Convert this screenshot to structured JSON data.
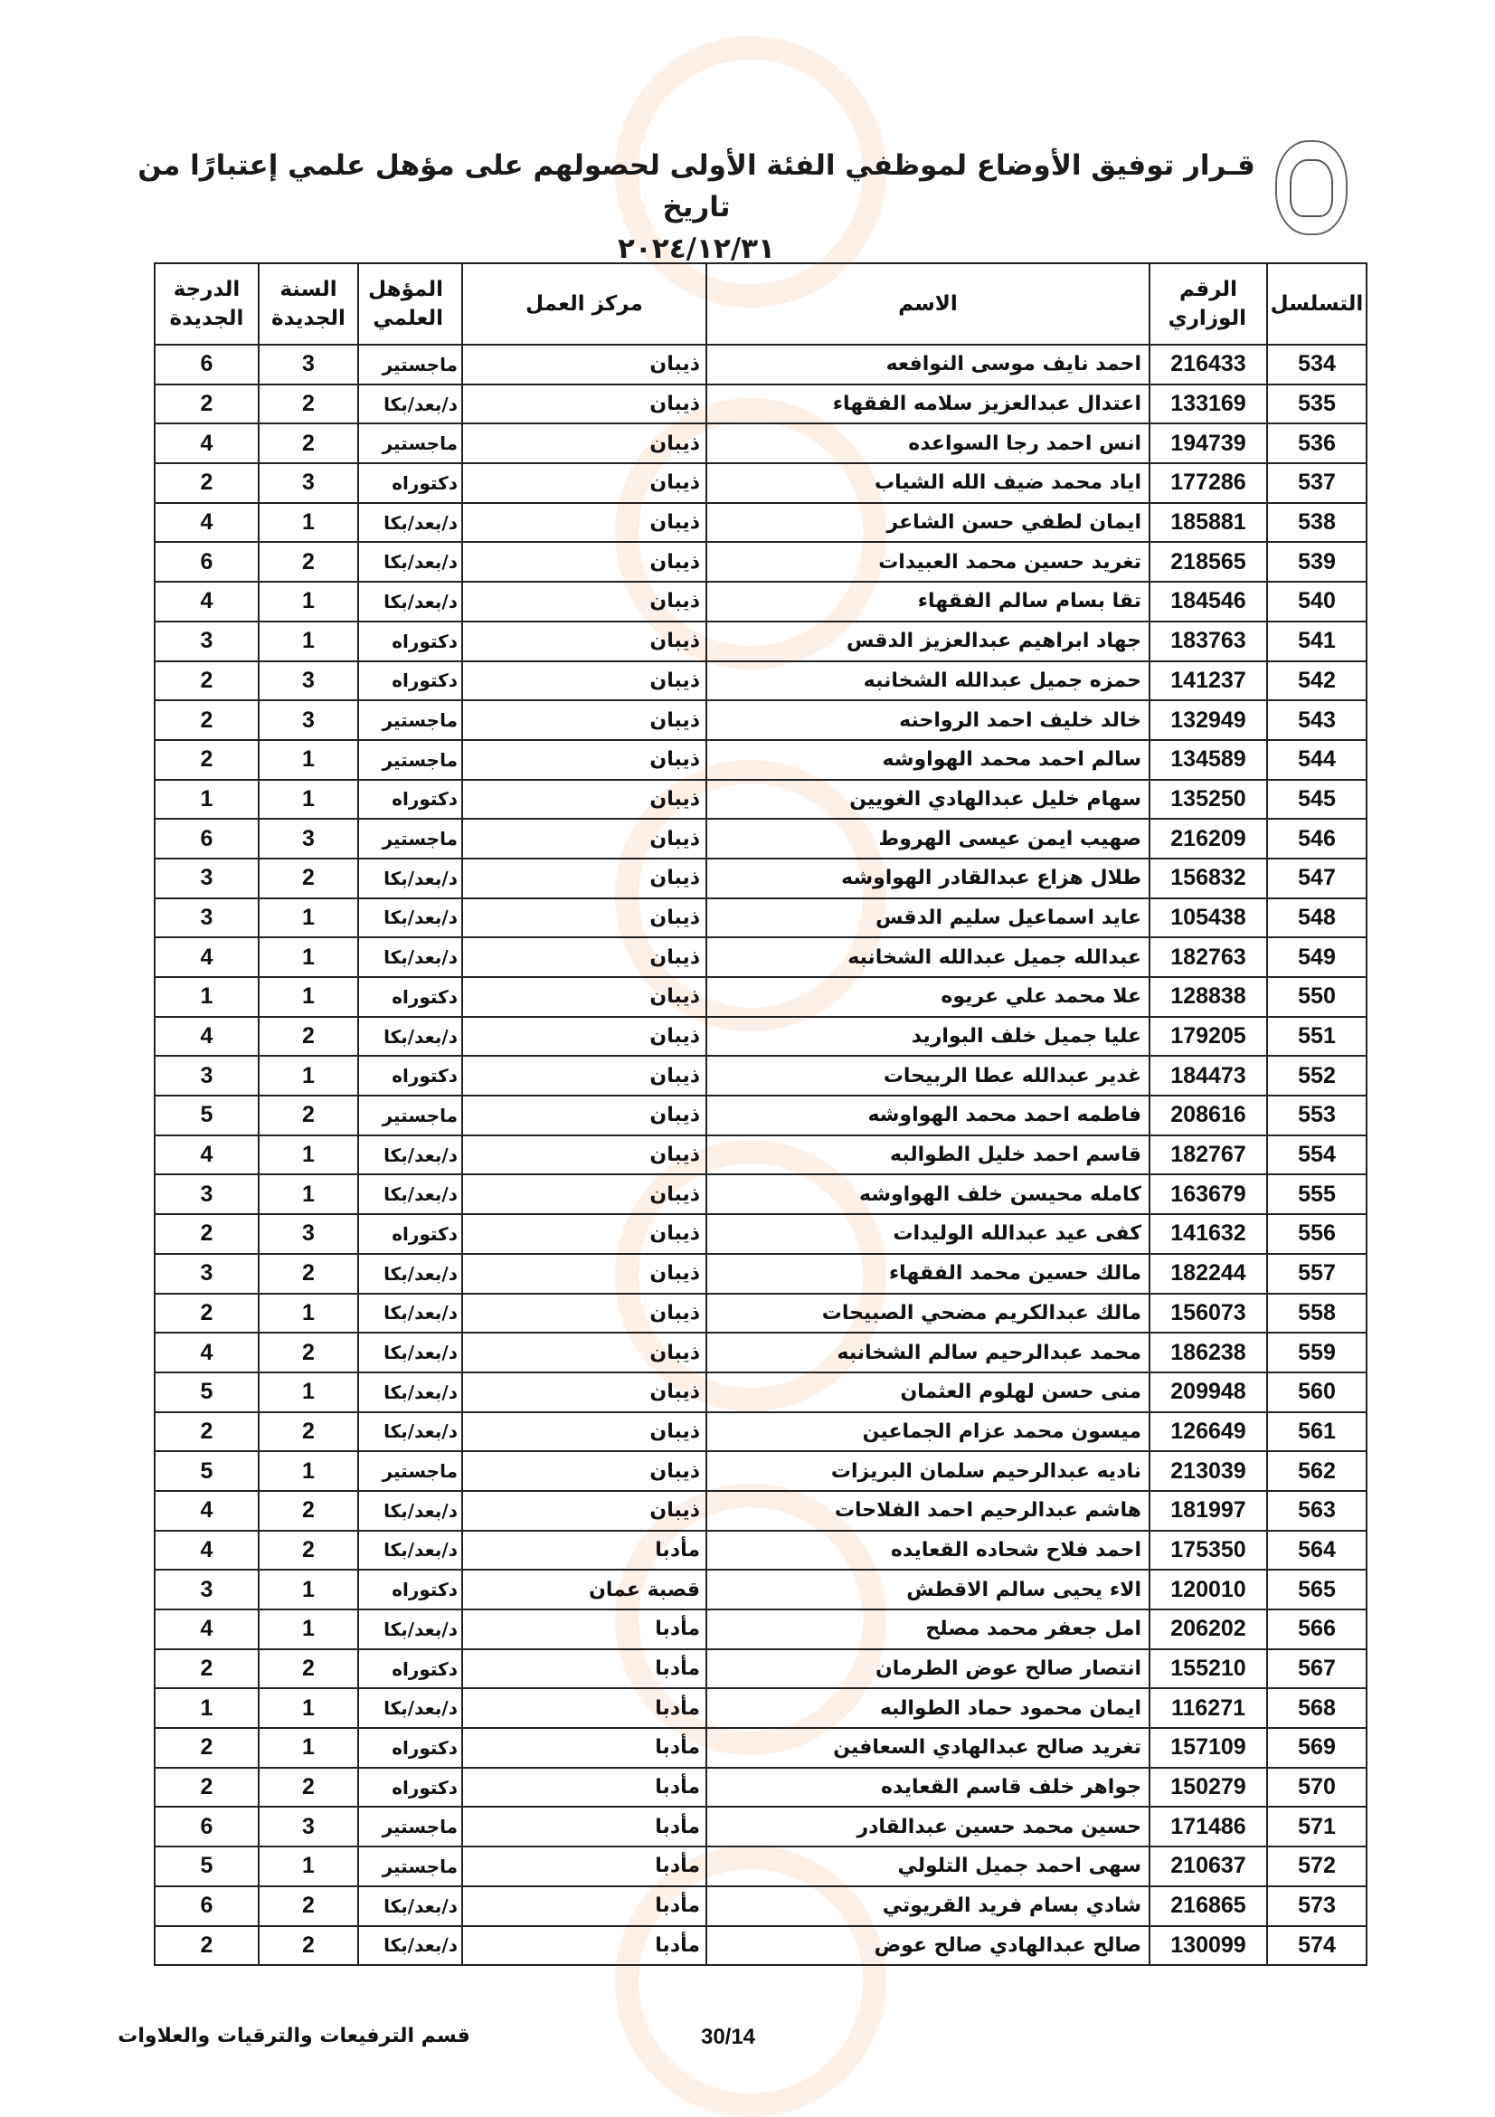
{
  "header": {
    "title_line1": "قـرار توفيق الأوضاع لموظفي الفئة الأولى لحصولهم على مؤهل علمي إعتبارًا من تاريخ",
    "title_line2": "٢٠٢٤/١٢/٣١",
    "logo": "coat-of-arms-seal"
  },
  "table": {
    "columns": [
      "التسلسل",
      "الرقم الوزاري",
      "الاسم",
      "مركز العمل",
      "المؤهل العلمي",
      "السنة الجديدة",
      "الدرجة الجديدة"
    ],
    "rows": [
      [
        "534",
        "216433",
        "احمد نايف موسى النوافعه",
        "ذيبان",
        "ماجستير",
        "3",
        "6"
      ],
      [
        "535",
        "133169",
        "اعتدال عبدالعزيز سلامه الفقهاء",
        "ذيبان",
        "د/بعد/بكا",
        "2",
        "2"
      ],
      [
        "536",
        "194739",
        "انس احمد رجا السواعده",
        "ذيبان",
        "ماجستير",
        "2",
        "4"
      ],
      [
        "537",
        "177286",
        "اياد محمد ضيف الله الشياب",
        "ذيبان",
        "دكتوراه",
        "3",
        "2"
      ],
      [
        "538",
        "185881",
        "ايمان لطفي حسن الشاعر",
        "ذيبان",
        "د/بعد/بكا",
        "1",
        "4"
      ],
      [
        "539",
        "218565",
        "تغريد حسين محمد العبيدات",
        "ذيبان",
        "د/بعد/بكا",
        "2",
        "6"
      ],
      [
        "540",
        "184546",
        "تقا بسام سالم الفقهاء",
        "ذيبان",
        "د/بعد/بكا",
        "1",
        "4"
      ],
      [
        "541",
        "183763",
        "جهاد ابراهيم عبدالعزيز الدقس",
        "ذيبان",
        "دكتوراه",
        "1",
        "3"
      ],
      [
        "542",
        "141237",
        "حمزه جميل عبدالله الشخانبه",
        "ذيبان",
        "دكتوراه",
        "3",
        "2"
      ],
      [
        "543",
        "132949",
        "خالد خليف احمد الرواحنه",
        "ذيبان",
        "ماجستير",
        "3",
        "2"
      ],
      [
        "544",
        "134589",
        "سالم احمد محمد الهواوشه",
        "ذيبان",
        "ماجستير",
        "1",
        "2"
      ],
      [
        "545",
        "135250",
        "سهام خليل عبدالهادي الغويين",
        "ذيبان",
        "دكتوراه",
        "1",
        "1"
      ],
      [
        "546",
        "216209",
        "صهيب ايمن عيسى الهروط",
        "ذيبان",
        "ماجستير",
        "3",
        "6"
      ],
      [
        "547",
        "156832",
        "طلال هزاع عبدالقادر الهواوشه",
        "ذيبان",
        "د/بعد/بكا",
        "2",
        "3"
      ],
      [
        "548",
        "105438",
        "عايد اسماعيل سليم الدقس",
        "ذيبان",
        "د/بعد/بكا",
        "1",
        "3"
      ],
      [
        "549",
        "182763",
        "عبدالله جميل عبدالله الشخانبه",
        "ذيبان",
        "د/بعد/بكا",
        "1",
        "4"
      ],
      [
        "550",
        "128838",
        "علا محمد علي عريوه",
        "ذيبان",
        "دكتوراه",
        "1",
        "1"
      ],
      [
        "551",
        "179205",
        "عليا جميل خلف البواريد",
        "ذيبان",
        "د/بعد/بكا",
        "2",
        "4"
      ],
      [
        "552",
        "184473",
        "غدير عبدالله عطا الربيحات",
        "ذيبان",
        "دكتوراه",
        "1",
        "3"
      ],
      [
        "553",
        "208616",
        "فاطمه احمد محمد الهواوشه",
        "ذيبان",
        "ماجستير",
        "2",
        "5"
      ],
      [
        "554",
        "182767",
        "قاسم احمد خليل الطوالبه",
        "ذيبان",
        "د/بعد/بكا",
        "1",
        "4"
      ],
      [
        "555",
        "163679",
        "كامله محيسن خلف الهواوشه",
        "ذيبان",
        "د/بعد/بكا",
        "1",
        "3"
      ],
      [
        "556",
        "141632",
        "كفى عيد عبدالله الوليدات",
        "ذيبان",
        "دكتوراه",
        "3",
        "2"
      ],
      [
        "557",
        "182244",
        "مالك حسين محمد الفقهاء",
        "ذيبان",
        "د/بعد/بكا",
        "2",
        "3"
      ],
      [
        "558",
        "156073",
        "مالك عبدالكريم مضحي الصبيحات",
        "ذيبان",
        "د/بعد/بكا",
        "1",
        "2"
      ],
      [
        "559",
        "186238",
        "محمد عبدالرحيم سالم الشخانبه",
        "ذيبان",
        "د/بعد/بكا",
        "2",
        "4"
      ],
      [
        "560",
        "209948",
        "منى حسن لهلوم العثمان",
        "ذيبان",
        "د/بعد/بكا",
        "1",
        "5"
      ],
      [
        "561",
        "126649",
        "ميسون محمد عزام الجماعين",
        "ذيبان",
        "د/بعد/بكا",
        "2",
        "2"
      ],
      [
        "562",
        "213039",
        "ناديه عبدالرحيم سلمان البريزات",
        "ذيبان",
        "ماجستير",
        "1",
        "5"
      ],
      [
        "563",
        "181997",
        "هاشم عبدالرحيم احمد الفلاحات",
        "ذيبان",
        "د/بعد/بكا",
        "2",
        "4"
      ],
      [
        "564",
        "175350",
        "احمد فلاح شحاده القعايده",
        "مأدبا",
        "د/بعد/بكا",
        "2",
        "4"
      ],
      [
        "565",
        "120010",
        "الاء يحيى سالم الاقطش",
        "قصبة عمان",
        "دكتوراه",
        "1",
        "3"
      ],
      [
        "566",
        "206202",
        "امل جعفر محمد مصلح",
        "مأدبا",
        "د/بعد/بكا",
        "1",
        "4"
      ],
      [
        "567",
        "155210",
        "انتصار صالح عوض الطرمان",
        "مأدبا",
        "دكتوراه",
        "2",
        "2"
      ],
      [
        "568",
        "116271",
        "ايمان محمود حماد الطوالبه",
        "مأدبا",
        "د/بعد/بكا",
        "1",
        "1"
      ],
      [
        "569",
        "157109",
        "تغريد صالح عبدالهادي السعافين",
        "مأدبا",
        "دكتوراه",
        "1",
        "2"
      ],
      [
        "570",
        "150279",
        "جواهر خلف قاسم القعايده",
        "مأدبا",
        "دكتوراه",
        "2",
        "2"
      ],
      [
        "571",
        "171486",
        "حسين محمد حسين عبدالقادر",
        "مأدبا",
        "ماجستير",
        "3",
        "6"
      ],
      [
        "572",
        "210637",
        "سهى احمد جميل التلولي",
        "مأدبا",
        "ماجستير",
        "1",
        "5"
      ],
      [
        "573",
        "216865",
        "شادي بسام فريد القريوتي",
        "مأدبا",
        "د/بعد/بكا",
        "2",
        "6"
      ],
      [
        "574",
        "130099",
        "صالح عبدالهادي صالح عوض",
        "مأدبا",
        "د/بعد/بكا",
        "2",
        "2"
      ]
    ]
  },
  "footer": {
    "department": "قسم الترفيعات والترقيات والعلاوات",
    "page": "30/14"
  }
}
